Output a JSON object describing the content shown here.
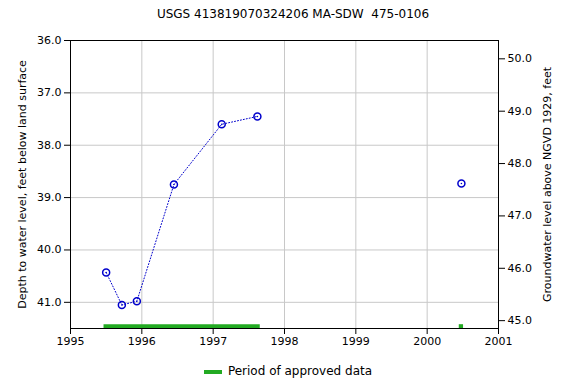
{
  "chart_data": {
    "type": "line",
    "title": "USGS 413819070324206 MA-SDW  475-0106",
    "ylabel": "Depth to water level, feet below land surface",
    "y2label": "Groundwater level above NGVD 1929, feet",
    "x": [
      1995.5,
      1995.72,
      1995.93,
      1996.45,
      1997.12,
      1997.62,
      null,
      2000.48
    ],
    "values": [
      40.43,
      41.05,
      40.98,
      38.75,
      37.6,
      37.45,
      null,
      38.73
    ],
    "color": "#0000cc",
    "marker": "circle",
    "line_style": "dotted",
    "approved_periods": {
      "name": "Period of approved data",
      "color": "#22aa22",
      "ranges": [
        [
          1995.47,
          1997.66
        ],
        [
          2000.45,
          2000.51
        ]
      ]
    },
    "xlim": [
      1995,
      2001
    ],
    "xticks": [
      1995,
      1996,
      1997,
      1998,
      1999,
      2000,
      2001
    ],
    "ylim": [
      36,
      41.5
    ],
    "yticks": [
      {
        "value": 36,
        "label": "36.0"
      },
      {
        "value": 37,
        "label": "37.0"
      },
      {
        "value": 38,
        "label": "38.0"
      },
      {
        "value": 39,
        "label": "39.0"
      },
      {
        "value": 40,
        "label": "40.0"
      },
      {
        "value": 41,
        "label": "41.0"
      }
    ],
    "y2lim": [
      50.35,
      44.85
    ],
    "y2ticks": [
      {
        "value": 45,
        "label": "45.0"
      },
      {
        "value": 46,
        "label": "46.0"
      },
      {
        "value": 47,
        "label": "47.0"
      },
      {
        "value": 48,
        "label": "48.0"
      },
      {
        "value": 49,
        "label": "49.0"
      },
      {
        "value": 50,
        "label": "50.0"
      }
    ],
    "grid": true,
    "legend": "bottom"
  }
}
